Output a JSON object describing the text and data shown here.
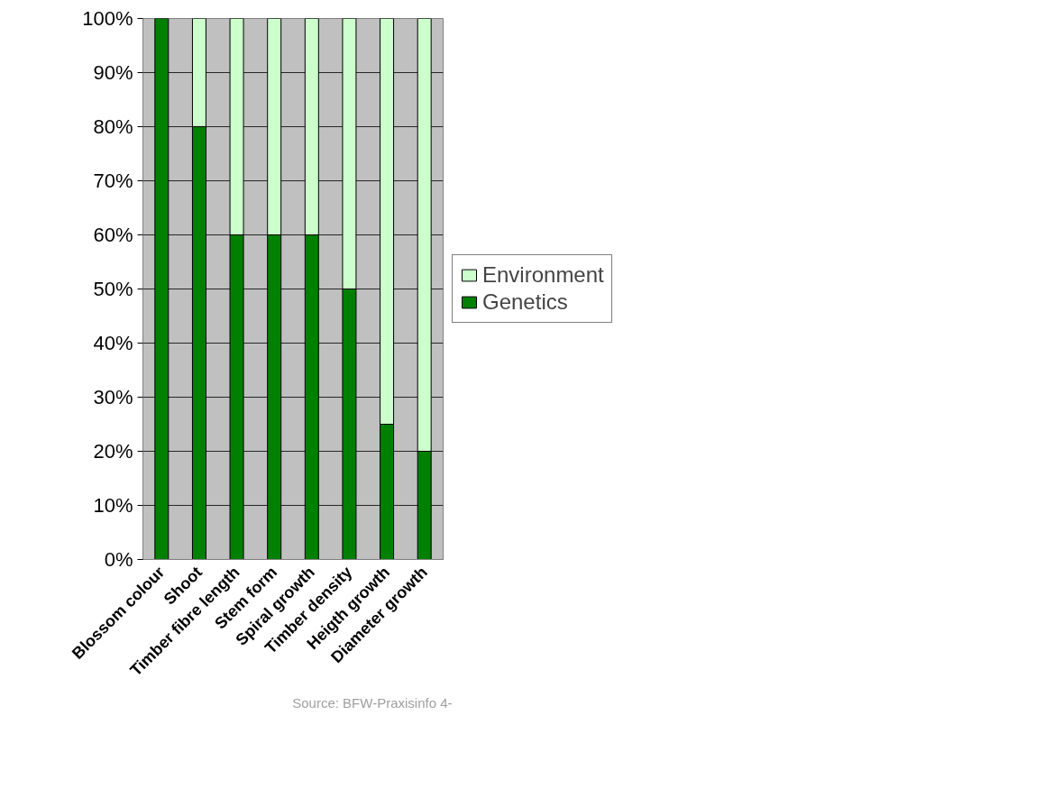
{
  "chart_data": {
    "type": "bar",
    "stacked": true,
    "categories": [
      "Blossom colour",
      "Shoot",
      "Timber fibre length",
      "Stem form",
      "Spiral growth",
      "Timber density",
      "Heigth growth",
      "Diameter growth"
    ],
    "series": [
      {
        "name": "Genetics",
        "color": "#008000",
        "values": [
          100,
          80,
          60,
          60,
          60,
          50,
          25,
          20
        ]
      },
      {
        "name": "Environment",
        "color": "#ccffcc",
        "values": [
          0,
          20,
          40,
          40,
          40,
          50,
          75,
          80
        ]
      }
    ],
    "ylim": [
      0,
      100
    ],
    "yticks": [
      {
        "value": 0,
        "label": "0%"
      },
      {
        "value": 10,
        "label": "10%"
      },
      {
        "value": 20,
        "label": "20%"
      },
      {
        "value": 30,
        "label": "30%"
      },
      {
        "value": 40,
        "label": "40%"
      },
      {
        "value": 50,
        "label": "50%"
      },
      {
        "value": 60,
        "label": "60%"
      },
      {
        "value": 70,
        "label": "70%"
      },
      {
        "value": 80,
        "label": "80%"
      },
      {
        "value": 90,
        "label": "90%"
      },
      {
        "value": 100,
        "label": "100%"
      }
    ],
    "grid": "y",
    "legend": "right",
    "annotations": [
      "Source: BFW-Praxisinfo 4-"
    ]
  }
}
